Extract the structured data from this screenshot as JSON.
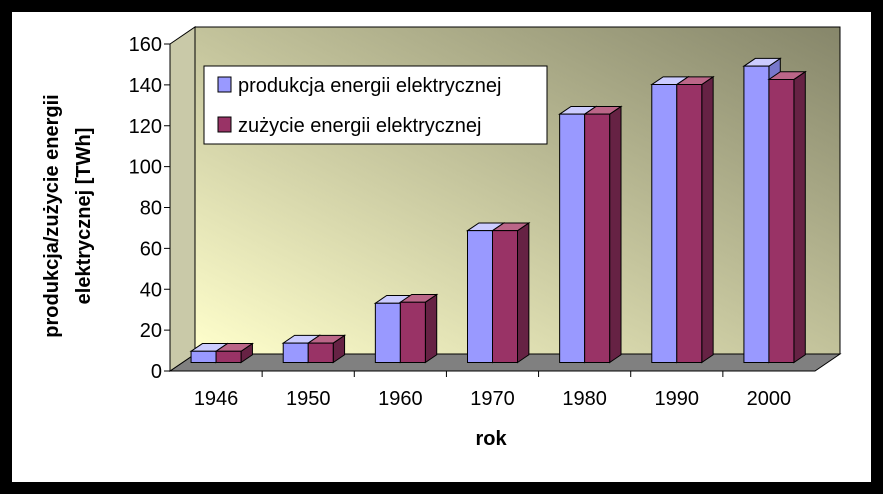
{
  "chart_data": {
    "type": "bar",
    "categories": [
      "1946",
      "1950",
      "1960",
      "1970",
      "1980",
      "1990",
      "2000"
    ],
    "series": [
      {
        "name": "produkcja energii elektrycznej",
        "values": [
          5.5,
          9.5,
          29,
          64.5,
          121.5,
          136,
          145
        ],
        "color": "#9999ff"
      },
      {
        "name": "zużycie energii elektrycznej",
        "values": [
          5.5,
          9.5,
          29.5,
          64.5,
          121.5,
          136,
          138.5
        ],
        "color": "#993366"
      }
    ],
    "y_ticks": [
      "0",
      "20",
      "40",
      "60",
      "80",
      "100",
      "120",
      "140",
      "160"
    ],
    "ylim": [
      0,
      160
    ],
    "xlabel": "rok",
    "ylabel_line1": "produkcja/zużycie energii",
    "ylabel_line2": "elektrycznej  [TWh]",
    "legend_position": "top-left",
    "grid": false,
    "colors": {
      "wall_light": "#ffffcc",
      "wall_dark": "#86866a",
      "floor": "#808080",
      "background": "#000000"
    }
  }
}
